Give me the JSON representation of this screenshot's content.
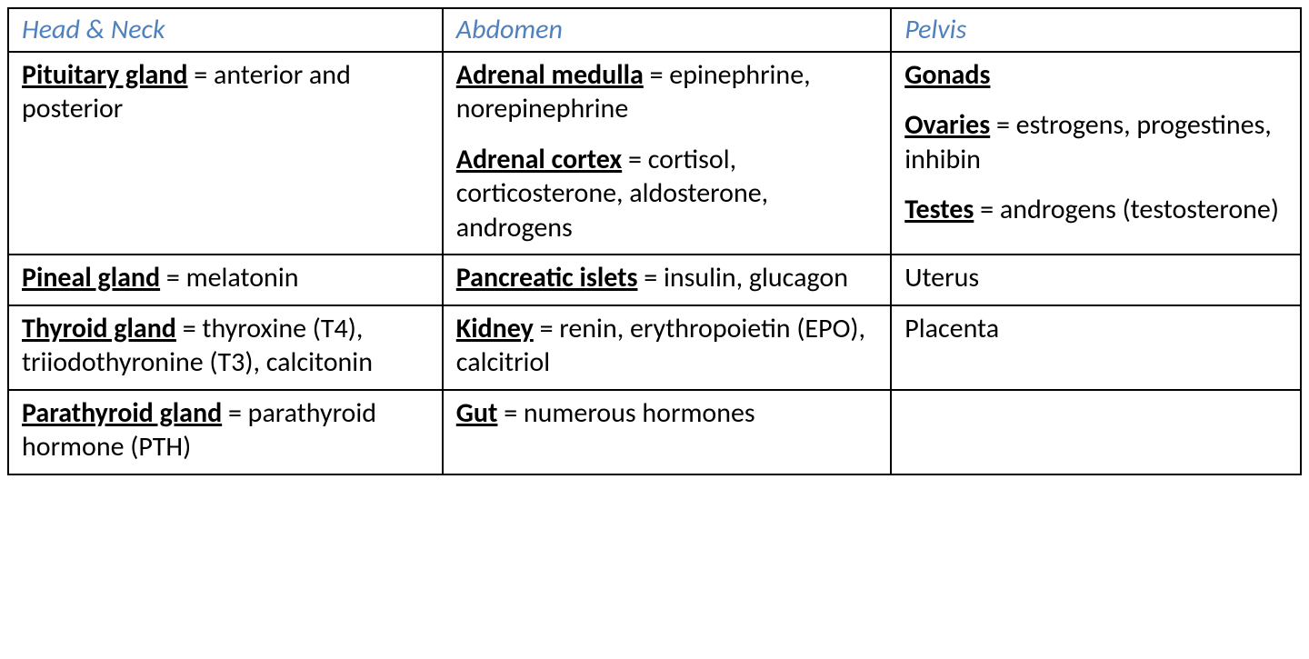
{
  "table": {
    "border_color": "#000000",
    "background_color": "#ffffff",
    "header_text_color": "#4f81bd",
    "body_text_color": "#000000",
    "font_family": "Calibri",
    "header_font_style": "italic",
    "header_font_weight": 400,
    "body_font_size_pt": 22,
    "column_widths_pct": [
      33.6,
      34.7,
      31.7
    ],
    "columns": [
      {
        "id": "head_neck",
        "header": "Head & Neck"
      },
      {
        "id": "abdomen",
        "header": "Abdomen"
      },
      {
        "id": "pelvis",
        "header": "Pelvis"
      }
    ],
    "rows": [
      {
        "head_neck": [
          {
            "gland": "Pituitary gland",
            "products": " = anterior and posterior"
          }
        ],
        "abdomen": [
          {
            "gland": "Adrenal medulla",
            "products": " = epinephrine, norepinephrine"
          },
          {
            "gland": "Adrenal cortex",
            "products": " = cortisol, corticosterone, aldosterone, androgens"
          }
        ],
        "pelvis": [
          {
            "gland": "Gonads",
            "products": ""
          },
          {
            "gland": "Ovaries",
            "products": " = estrogens, progestines, inhibin"
          },
          {
            "gland": "Testes",
            "products": " = androgens (testosterone)"
          }
        ]
      },
      {
        "head_neck": [
          {
            "gland": "Pineal gland",
            "products": " = melatonin"
          }
        ],
        "abdomen": [
          {
            "gland": "Pancreatic islets",
            "products": " = insulin, glucagon"
          }
        ],
        "pelvis": [
          {
            "plain": "Uterus"
          }
        ]
      },
      {
        "head_neck": [
          {
            "gland": "Thyroid gland",
            "products": " = thyroxine (T4), triiodothyronine (T3), calcitonin"
          }
        ],
        "abdomen": [
          {
            "gland": "Kidney",
            "products": " = renin, erythropoietin (EPO), calcitriol"
          }
        ],
        "pelvis": [
          {
            "plain": "Placenta"
          }
        ]
      },
      {
        "head_neck": [
          {
            "gland": "Parathyroid gland",
            "products": " = parathyroid hormone (PTH)"
          }
        ],
        "abdomen": [
          {
            "gland": "Gut",
            "products": " = numerous hormones"
          }
        ],
        "pelvis": [
          {
            "plain": ""
          }
        ]
      }
    ]
  }
}
